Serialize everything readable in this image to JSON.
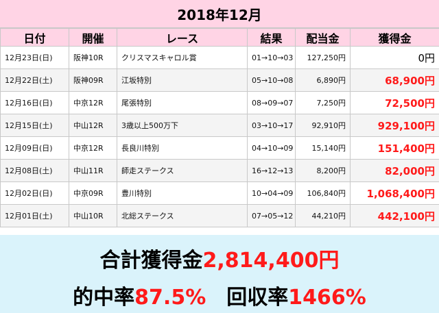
{
  "title": "2018年12月",
  "headers": [
    "日付",
    "開催",
    "レース",
    "結果",
    "配当金",
    "獲得金"
  ],
  "rows": [
    {
      "date": "12月23日(日)",
      "venue": "阪神10R",
      "race": "クリスマスキャロル賞",
      "result": "01→10→03",
      "payout": "127,250円",
      "earned": "0円",
      "hit": false
    },
    {
      "date": "12月22日(土)",
      "venue": "阪神09R",
      "race": "江坂特別",
      "result": "05→10→08",
      "payout": "6,890円",
      "earned": "68,900円",
      "hit": true
    },
    {
      "date": "12月16日(日)",
      "venue": "中京12R",
      "race": "尾張特別",
      "result": "08→09→07",
      "payout": "7,250円",
      "earned": "72,500円",
      "hit": true
    },
    {
      "date": "12月15日(土)",
      "venue": "中山12R",
      "race": "3歳以上500万下",
      "result": "03→10→17",
      "payout": "92,910円",
      "earned": "929,100円",
      "hit": true
    },
    {
      "date": "12月09日(日)",
      "venue": "中京12R",
      "race": "長良川特別",
      "result": "04→10→09",
      "payout": "15,140円",
      "earned": "151,400円",
      "hit": true
    },
    {
      "date": "12月08日(土)",
      "venue": "中山11R",
      "race": "師走ステークス",
      "result": "16→12→13",
      "payout": "8,200円",
      "earned": "82,000円",
      "hit": true
    },
    {
      "date": "12月02日(日)",
      "venue": "中京09R",
      "race": "豊川特別",
      "result": "10→04→09",
      "payout": "106,840円",
      "earned": "1,068,400円",
      "hit": true
    },
    {
      "date": "12月01日(土)",
      "venue": "中山10R",
      "race": "北総ステークス",
      "result": "07→05→12",
      "payout": "44,210円",
      "earned": "442,100円",
      "hit": true
    }
  ],
  "summary": {
    "total_label": "合計獲得金",
    "total_value": "2,814,400円",
    "hit_rate_label": "的中率",
    "hit_rate_value": "87.5%",
    "return_rate_label": "回収率",
    "return_rate_value": "1466%"
  },
  "colors": {
    "header_bg": "#ffd4e5",
    "summary_bg": "#daf3fb",
    "highlight": "#ff1a1a"
  }
}
